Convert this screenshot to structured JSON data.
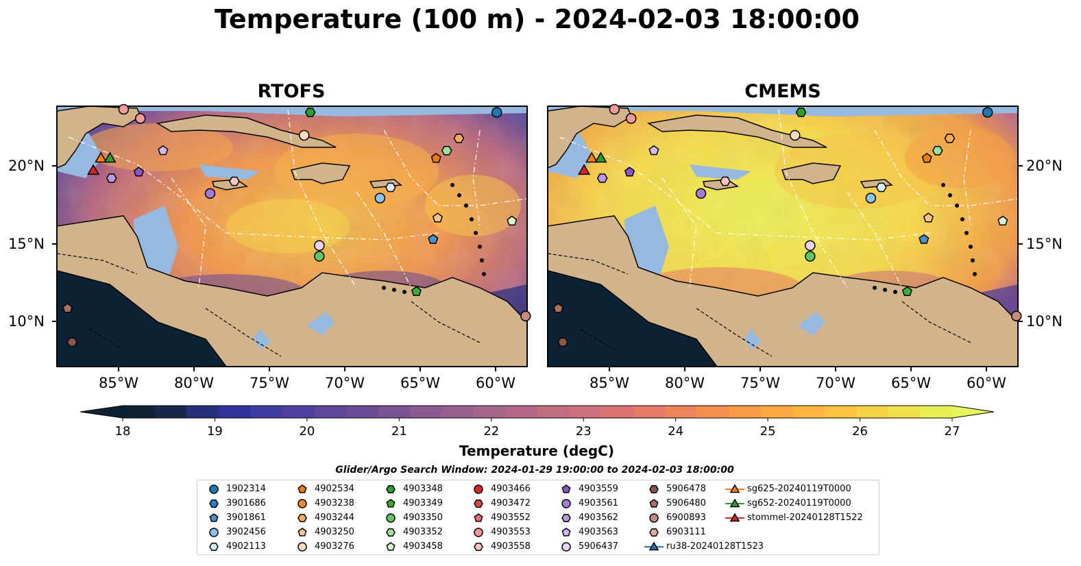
{
  "title": "Temperature (100 m) - 2024-02-03 18:00:00",
  "panels": [
    {
      "title": "RTOFS"
    },
    {
      "title": "CMEMS"
    }
  ],
  "lat_labels": [
    "20°N",
    "15°N",
    "10°N"
  ],
  "lon_labels": [
    "85°W",
    "80°W",
    "75°W",
    "70°W",
    "65°W",
    "60°W"
  ],
  "colorbar": {
    "label": "Temperature (degC)",
    "ticks": [
      "18",
      "19",
      "20",
      "21",
      "22",
      "23",
      "24",
      "25",
      "26",
      "27"
    ],
    "min": 17.5,
    "max": 27.5,
    "colors": [
      "#0d2233",
      "#17294a",
      "#23307a",
      "#30349a",
      "#3f3aa0",
      "#4f3f9e",
      "#5e469a",
      "#6c4c96",
      "#7b5393",
      "#8a5a90",
      "#975f8d",
      "#a5648a",
      "#b26886",
      "#c06c81",
      "#cd707b",
      "#da7472",
      "#e57b66",
      "#ee845a",
      "#f48f4e",
      "#f89b44",
      "#fba83e",
      "#fcb63d",
      "#fbc440",
      "#f6d346",
      "#efe14e",
      "#e8ef55"
    ],
    "under_color": "#0d2233",
    "over_color": "#e8f55a"
  },
  "search_window": "Glider/Argo Search Window: 2024-01-29 19:00:00 to 2024-02-03 18:00:00",
  "map_colors": {
    "land": "#d2b48c",
    "shelf": "#96b9e0",
    "deep": "#0d2233"
  },
  "legend": [
    {
      "label": "1902314",
      "marker": "circle",
      "color": "#1f77b4"
    },
    {
      "label": "3901686",
      "marker": "hexagon",
      "color": "#2e7fbf"
    },
    {
      "label": "3901861",
      "marker": "pentagon",
      "color": "#4a90cc"
    },
    {
      "label": "3902456",
      "marker": "circle",
      "color": "#8ec2ea"
    },
    {
      "label": "4902113",
      "marker": "hexagon",
      "color": "#d6ecf8"
    },
    {
      "label": "4902534",
      "marker": "pentagon",
      "color": "#f07c0c"
    },
    {
      "label": "4903238",
      "marker": "circle",
      "color": "#f38a2a"
    },
    {
      "label": "4903244",
      "marker": "hexagon",
      "color": "#f8ab5c"
    },
    {
      "label": "4903250",
      "marker": "pentagon",
      "color": "#fbc48d"
    },
    {
      "label": "4903276",
      "marker": "circle",
      "color": "#fddcbd"
    },
    {
      "label": "4903348",
      "marker": "hexagon",
      "color": "#2ca02c"
    },
    {
      "label": "4903349",
      "marker": "pentagon",
      "color": "#39ad39"
    },
    {
      "label": "4903350",
      "marker": "circle",
      "color": "#62c462"
    },
    {
      "label": "4903352",
      "marker": "hexagon",
      "color": "#9be19b"
    },
    {
      "label": "4903458",
      "marker": "pentagon",
      "color": "#d9f7d0"
    },
    {
      "label": "4903466",
      "marker": "circle",
      "color": "#d62728"
    },
    {
      "label": "4903472",
      "marker": "hexagon",
      "color": "#dc4a4a"
    },
    {
      "label": "4903552",
      "marker": "pentagon",
      "color": "#e86e6e"
    },
    {
      "label": "4903553",
      "marker": "circle",
      "color": "#f29a9a"
    },
    {
      "label": "4903558",
      "marker": "hexagon",
      "color": "#fac4c4"
    },
    {
      "label": "4903559",
      "marker": "pentagon",
      "color": "#8a56c2"
    },
    {
      "label": "4903561",
      "marker": "circle",
      "color": "#a57ad2"
    },
    {
      "label": "4903562",
      "marker": "hexagon",
      "color": "#bc98e0"
    },
    {
      "label": "4903563",
      "marker": "pentagon",
      "color": "#d3b8ee"
    },
    {
      "label": "5906437",
      "marker": "circle",
      "color": "#e8d4fa"
    },
    {
      "label": "5906478",
      "marker": "hexagon",
      "color": "#8c564b"
    },
    {
      "label": "5906480",
      "marker": "pentagon",
      "color": "#a86e60"
    },
    {
      "label": "6900893",
      "marker": "circle",
      "color": "#c48c7c"
    },
    {
      "label": "6903111",
      "marker": "hexagon",
      "color": "#dcaca0"
    },
    {
      "label": "ru38-20240128T1523",
      "marker": "triangle-line",
      "color": "#1f77b4"
    },
    {
      "label": "sg625-20240119T0000",
      "marker": "triangle-line",
      "color": "#ff7f0e"
    },
    {
      "label": "sg652-20240119T0000",
      "marker": "triangle-line",
      "color": "#2ca02c"
    },
    {
      "label": "stommel-20240128T1522",
      "marker": "triangle-line",
      "color": "#d62728"
    }
  ],
  "floats_on_map": [
    {
      "id": "1902314",
      "lon": -60.0,
      "lat": 23.6
    },
    {
      "id": "3902456",
      "lon": -67.7,
      "lat": 18.0
    },
    {
      "id": "4902113",
      "lon": -67.0,
      "lat": 18.7
    },
    {
      "id": "3901861",
      "lon": -64.2,
      "lat": 15.3
    },
    {
      "id": "4902534",
      "lon": -64.0,
      "lat": 20.6
    },
    {
      "id": "4903244",
      "lon": -62.5,
      "lat": 21.9
    },
    {
      "id": "4903250",
      "lon": -63.9,
      "lat": 16.7
    },
    {
      "id": "4903276",
      "lon": -72.7,
      "lat": 22.1
    },
    {
      "id": "4903348",
      "lon": -72.3,
      "lat": 23.6
    },
    {
      "id": "4903349",
      "lon": -65.3,
      "lat": 11.9
    },
    {
      "id": "4903350",
      "lon": -71.7,
      "lat": 14.2
    },
    {
      "id": "4903352",
      "lon": -63.3,
      "lat": 21.1
    },
    {
      "id": "4903458",
      "lon": -59.0,
      "lat": 16.5
    },
    {
      "id": "4903553",
      "lon": -83.5,
      "lat": 23.2
    },
    {
      "id": "4903558",
      "lon": -77.3,
      "lat": 19.1
    },
    {
      "id": "4903559",
      "lon": -83.6,
      "lat": 19.7
    },
    {
      "id": "4903561",
      "lon": -78.9,
      "lat": 18.3
    },
    {
      "id": "4903562",
      "lon": -85.4,
      "lat": 19.3
    },
    {
      "id": "4903563",
      "lon": -82.0,
      "lat": 21.1
    },
    {
      "id": "5906437",
      "lon": -71.7,
      "lat": 14.9
    },
    {
      "id": "5906478",
      "lon": -88.0,
      "lat": 8.6
    },
    {
      "id": "5906480",
      "lon": -88.3,
      "lat": 10.8
    },
    {
      "id": "6900893",
      "lon": -58.1,
      "lat": 10.3
    },
    {
      "id": "4903553",
      "lon": -84.6,
      "lat": 23.8
    }
  ],
  "gliders_on_map": [
    {
      "id": "stommel-20240128T1522",
      "lon": -86.6,
      "lat": 19.8
    },
    {
      "id": "sg625-20240119T0000",
      "lon": -86.1,
      "lat": 20.6
    },
    {
      "id": "sg652-20240119T0000",
      "lon": -85.5,
      "lat": 20.6
    }
  ]
}
